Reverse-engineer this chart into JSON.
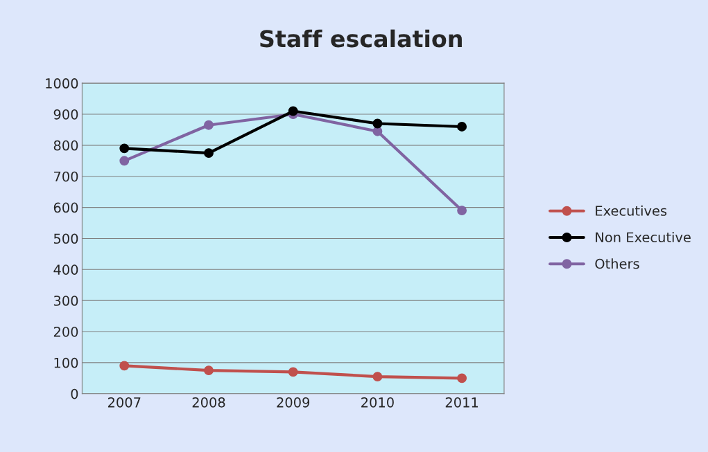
{
  "chart_data": {
    "type": "line",
    "title": "Staff escalation",
    "categories": [
      "2007",
      "2008",
      "2009",
      "2010",
      "2011"
    ],
    "series": [
      {
        "name": "Executives",
        "color": "#c0504d",
        "values": [
          90,
          75,
          70,
          55,
          50
        ]
      },
      {
        "name": "Non Executive",
        "color": "#000000",
        "values": [
          790,
          775,
          910,
          870,
          860
        ]
      },
      {
        "name": "Others",
        "color": "#8064a2",
        "values": [
          750,
          865,
          900,
          845,
          590
        ]
      }
    ],
    "ylim": [
      0,
      1000
    ],
    "yticks": [
      0,
      100,
      200,
      300,
      400,
      500,
      600,
      700,
      800,
      900,
      1000
    ],
    "grid": "y",
    "legend": "right",
    "marker": "circle",
    "line_style": "solid"
  }
}
